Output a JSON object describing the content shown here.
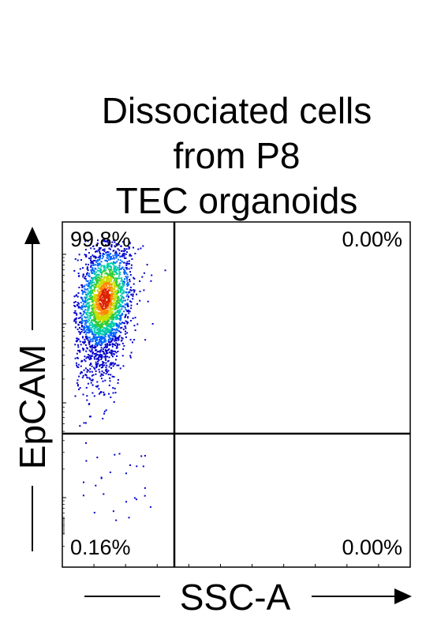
{
  "title_lines": [
    "Dissociated cells",
    "from P8",
    "TEC organoids"
  ],
  "chart_data": {
    "type": "scatter",
    "subtype": "flow-cytometry-density-plot",
    "xlabel": "SSC-A",
    "ylabel": "EpCAM",
    "y_scale": "log",
    "quadrants": [
      {
        "position": "upper-left",
        "label": "99.8%",
        "value": 99.8
      },
      {
        "position": "upper-right",
        "label": "0.00%",
        "value": 0.0
      },
      {
        "position": "lower-left",
        "label": "0.16%",
        "value": 0.16
      },
      {
        "position": "lower-right",
        "label": "0.00%",
        "value": 0.0
      }
    ],
    "population": {
      "x_center": 0.12,
      "x_spread": 0.045,
      "y_center": 0.78,
      "y_spread": 0.09,
      "density_colors": [
        "#0000cc",
        "#0066ff",
        "#00ccaa",
        "#33cc33",
        "#ccdd00",
        "#ff8800",
        "#dd2200"
      ]
    }
  }
}
